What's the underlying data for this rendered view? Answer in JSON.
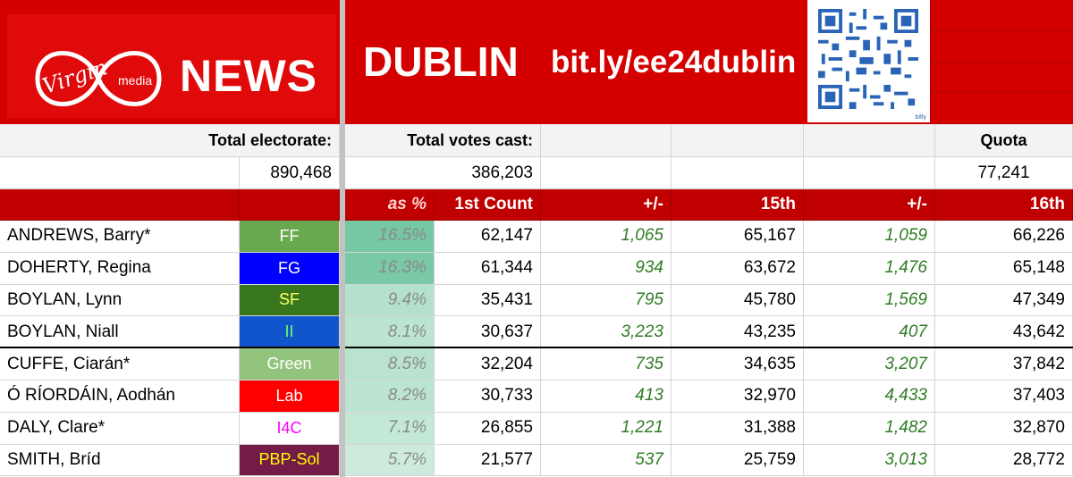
{
  "header": {
    "brand_logo_text": "Virgin media",
    "brand_news": "NEWS",
    "constituency": "DUBLIN",
    "link": "bit.ly/ee24dublin",
    "qr_caption": "bitly"
  },
  "summary": {
    "electorate_label": "Total electorate:",
    "electorate_value": "890,468",
    "votes_cast_label": "Total votes cast:",
    "votes_cast_value": "386,203",
    "quota_label": "Quota",
    "quota_value": "77,241"
  },
  "columns": {
    "pct": "as %",
    "first": "1st Count",
    "delta1": "+/-",
    "c15": "15th",
    "delta2": "+/-",
    "c16": "16th"
  },
  "colors": {
    "header_red": "#d40000",
    "column_header_red": "#c00000",
    "transfer_green": "#2f7d24"
  },
  "candidates": [
    {
      "name": "ANDREWS, Barry*",
      "party": "FF",
      "party_bg": "#6aa84f",
      "party_fg": "#ffffff",
      "pct": "16.5%",
      "pct_bg": "#76c7a3",
      "first": "62,147",
      "d1": "1,065",
      "c15": "65,167",
      "d2": "1,059",
      "c16": "66,226"
    },
    {
      "name": "DOHERTY, Regina",
      "party": "FG",
      "party_bg": "#0000ff",
      "party_fg": "#ffffff",
      "pct": "16.3%",
      "pct_bg": "#7ac9a6",
      "first": "61,344",
      "d1": "934",
      "c15": "63,672",
      "d2": "1,476",
      "c16": "65,148"
    },
    {
      "name": "BOYLAN, Lynn",
      "party": "SF",
      "party_bg": "#38761d",
      "party_fg": "#ffff66",
      "pct": "9.4%",
      "pct_bg": "#b3e1cb",
      "first": "35,431",
      "d1": "795",
      "c15": "45,780",
      "d2": "1,569",
      "c16": "47,349"
    },
    {
      "name": "BOYLAN, Niall",
      "party": "II",
      "party_bg": "#1155cc",
      "party_fg": "#66ff66",
      "pct": "8.1%",
      "pct_bg": "#bce5d1",
      "first": "30,637",
      "d1": "3,223",
      "c15": "43,235",
      "d2": "407",
      "c16": "43,642"
    },
    {
      "name": "CUFFE, Ciarán*",
      "party": "Green",
      "party_bg": "#93c47d",
      "party_fg": "#ffffff",
      "pct": "8.5%",
      "pct_bg": "#b9e3cf",
      "first": "32,204",
      "d1": "735",
      "c15": "34,635",
      "d2": "3,207",
      "c16": "37,842"
    },
    {
      "name": "Ó RÍORDÁIN, Aodhán",
      "party": "Lab",
      "party_bg": "#ff0000",
      "party_fg": "#ffffff",
      "pct": "8.2%",
      "pct_bg": "#bce5d1",
      "first": "30,733",
      "d1": "413",
      "c15": "32,970",
      "d2": "4,433",
      "c16": "37,403"
    },
    {
      "name": "DALY, Clare*",
      "party": "I4C",
      "party_bg": "#ffffff",
      "party_fg": "#ff00ff",
      "pct": "7.1%",
      "pct_bg": "#c4e8d6",
      "first": "26,855",
      "d1": "1,221",
      "c15": "31,388",
      "d2": "1,482",
      "c16": "32,870"
    },
    {
      "name": "SMITH, Bríd",
      "party": "PBP-Sol",
      "party_bg": "#741b47",
      "party_fg": "#ffff00",
      "pct": "5.7%",
      "pct_bg": "#cdebdc",
      "first": "21,577",
      "d1": "537",
      "c15": "25,759",
      "d2": "3,013",
      "c16": "28,772"
    }
  ]
}
